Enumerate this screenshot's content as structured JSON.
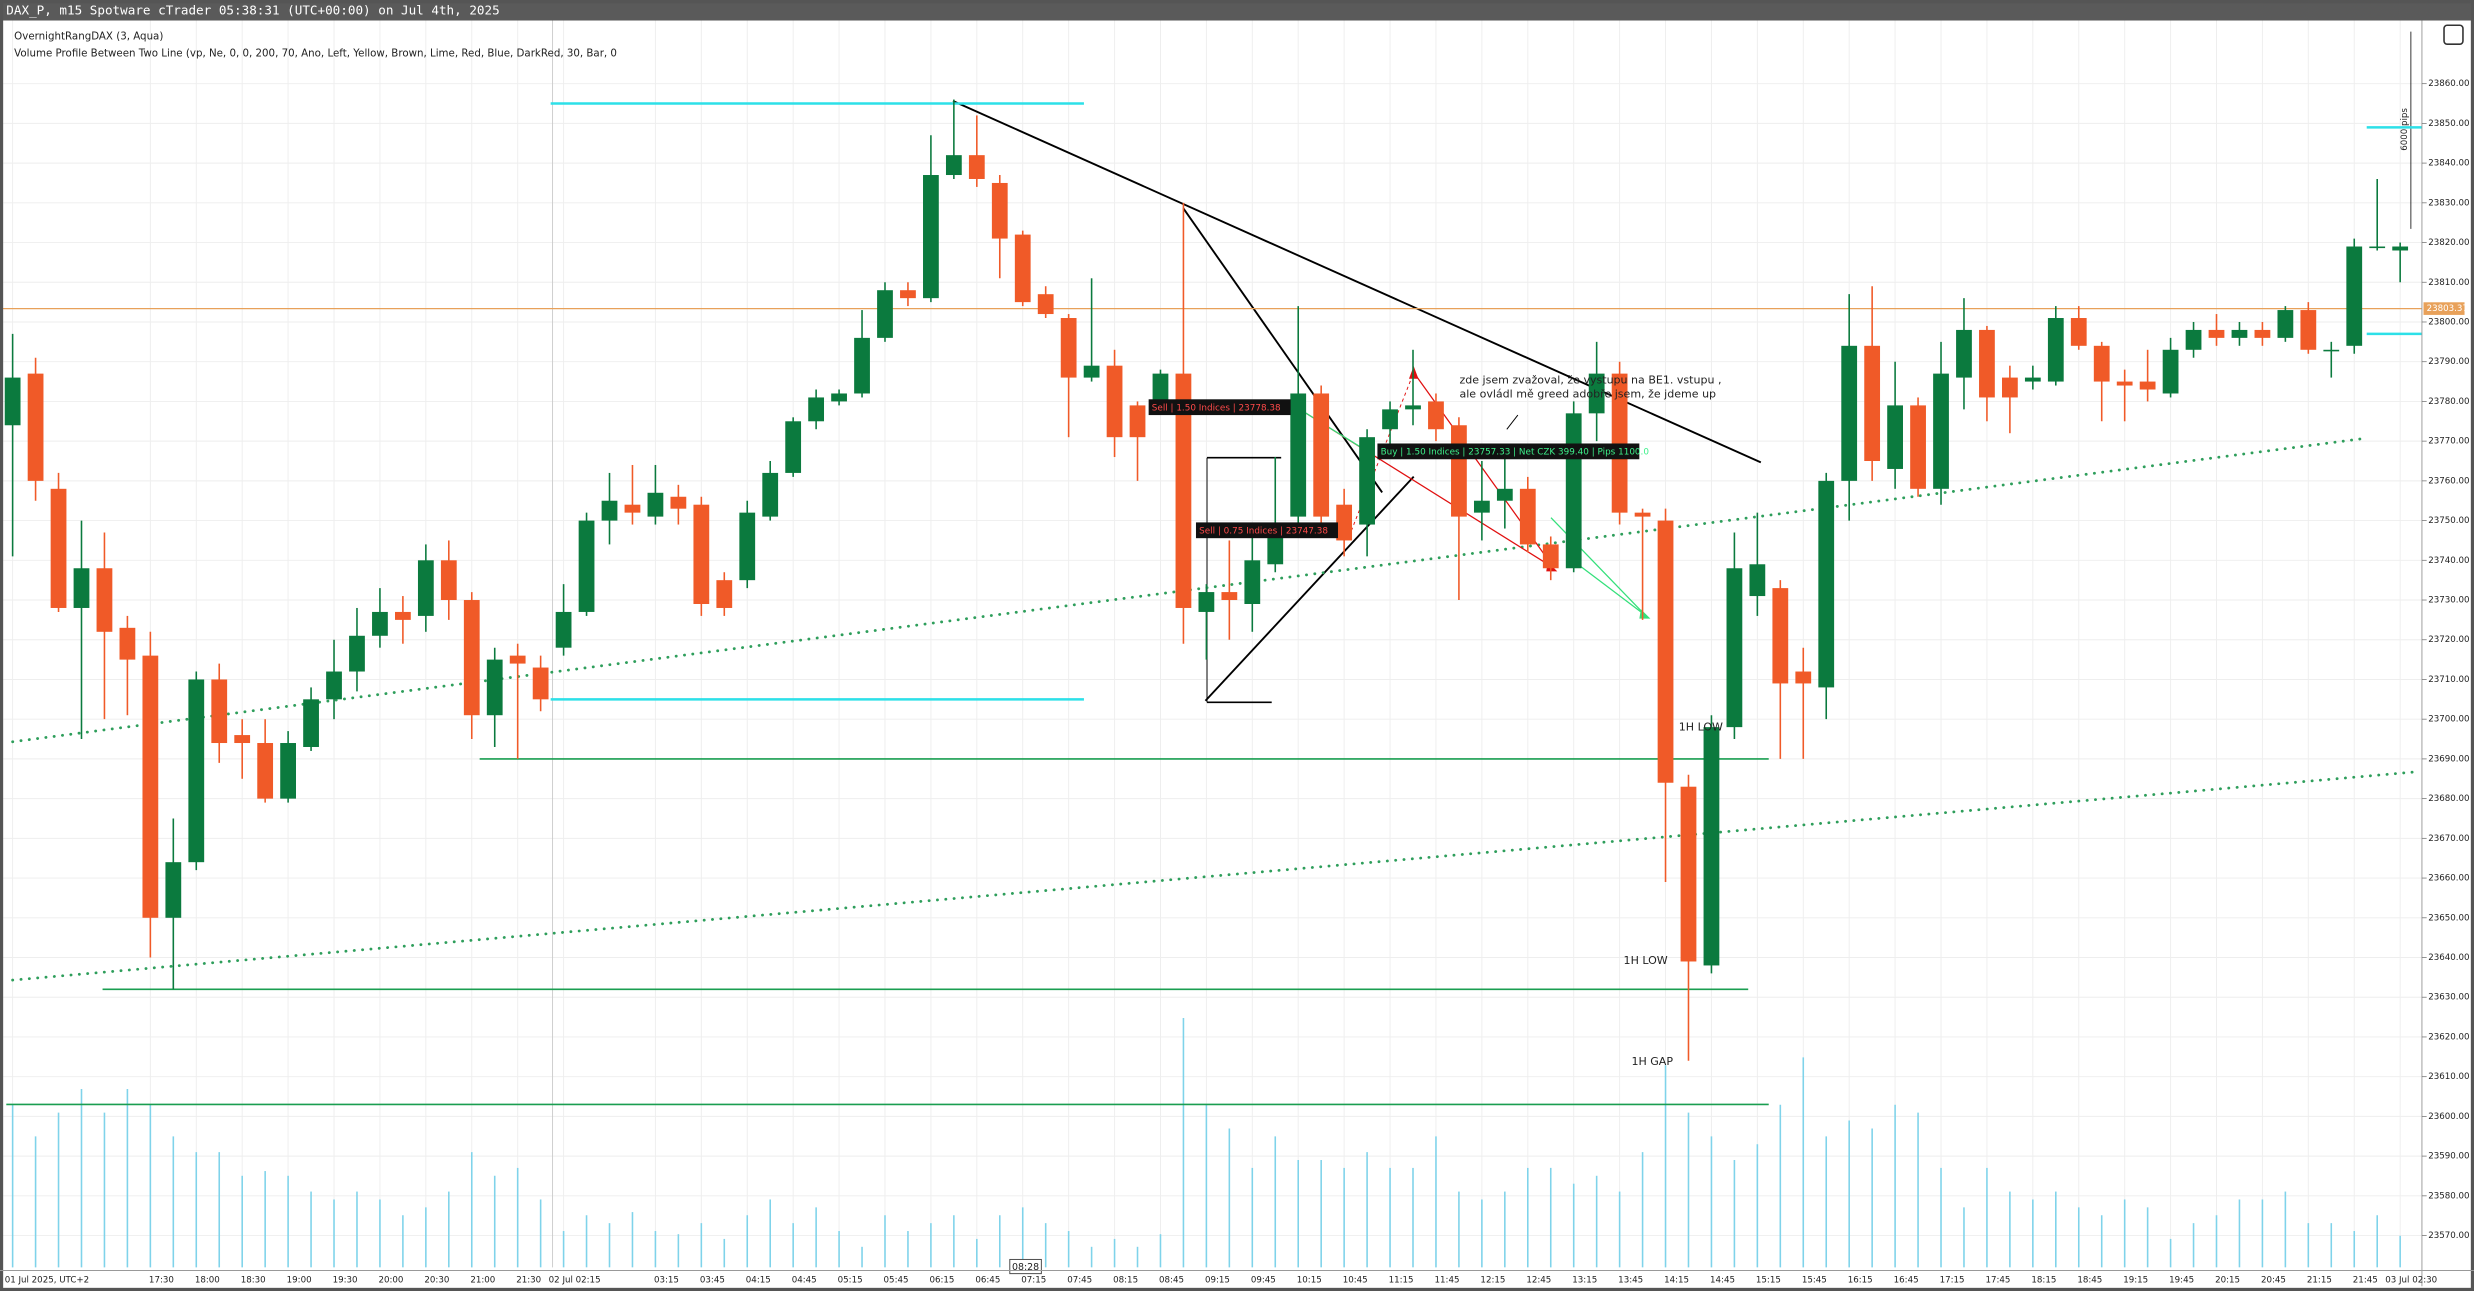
{
  "header": {
    "title": "DAX_P, m15 Spotware cTrader 05:38:31 (UTC+00:00) on Jul 4th, 2025",
    "indicators": [
      "OvernightRangDAX (3, Aqua)",
      "Volume Profile Between Two Line (vp, Ne, 0, 0, 200, 70, Ano, Left, Yellow, Brown, Lime, Red, Blue, DarkRed, 30, Bar, 0"
    ]
  },
  "chart_data": {
    "type": "candlestick",
    "up_color": "#0b7a3e",
    "down_color": "#f05a28",
    "volume_color": "#7fd3ea",
    "grid": true,
    "categories": [
      "01 Jul 2025, UTC+2",
      null,
      null,
      null,
      null,
      null,
      "17:30",
      null,
      "18:00",
      null,
      "18:30",
      null,
      "19:00",
      null,
      "19:30",
      null,
      "20:00",
      null,
      "20:30",
      null,
      "21:00",
      null,
      "21:30",
      null,
      "02 Jul 02:15",
      null,
      null,
      null,
      "03:15",
      null,
      "03:45",
      null,
      "04:15",
      null,
      "04:45",
      null,
      "05:15",
      null,
      "05:45",
      null,
      "06:15",
      null,
      "06:45",
      null,
      "07:15",
      null,
      "07:45",
      null,
      "08:15",
      null,
      "08:45",
      null,
      "09:15",
      null,
      "09:45",
      null,
      "10:15",
      null,
      "10:45",
      null,
      "11:15",
      null,
      "11:45",
      null,
      "12:15",
      null,
      "12:45",
      null,
      "13:15",
      null,
      "13:45",
      null,
      "14:15",
      null,
      "14:45",
      null,
      "15:15",
      null,
      "15:45",
      null,
      "16:15",
      null,
      "16:45",
      null,
      "17:15",
      null,
      "17:45",
      null,
      "18:15",
      null,
      "18:45",
      null,
      "19:15",
      null,
      "19:45",
      null,
      "20:15",
      null,
      "20:45",
      null,
      "21:15",
      null,
      "21:45",
      null,
      "03 Jul 02:30"
    ],
    "open": [
      23774,
      23787,
      23758,
      23728,
      23738,
      23723,
      23716,
      23650,
      23664,
      23710,
      23696,
      23694,
      23680,
      23693,
      23705,
      23712,
      23721,
      23727,
      23726,
      23740,
      23730,
      23701,
      23716,
      23713,
      23718,
      23727,
      23750,
      23754,
      23751,
      23756,
      23754,
      23735,
      23735,
      23751,
      23762,
      23775,
      23780,
      23782,
      23796,
      23808,
      23806,
      23837,
      23842,
      23835,
      23822,
      23807,
      23801,
      23786,
      23789,
      23779,
      23780,
      23787,
      23727,
      23732,
      23729,
      23739,
      23751,
      23782,
      23754,
      23749,
      23773,
      23778,
      23780,
      23774,
      23752,
      23755,
      23758,
      23744,
      23738,
      23777,
      23787,
      23752,
      23750,
      23683,
      23638,
      23698,
      23731,
      23733,
      23712,
      23708,
      23760,
      23794,
      23763,
      23779,
      23758,
      23786,
      23798,
      23786,
      23785,
      23785,
      23801,
      23794,
      23785,
      23785,
      23782,
      23793,
      23798,
      23796,
      23798,
      23796,
      23803,
      23793,
      23794,
      23819,
      23818
    ],
    "high": [
      23797,
      23791,
      23762,
      23750,
      23747,
      23726,
      23722,
      23675,
      23712,
      23714,
      23700,
      23700,
      23697,
      23708,
      23720,
      23728,
      23733,
      23731,
      23744,
      23745,
      23732,
      23718,
      23719,
      23716,
      23734,
      23752,
      23762,
      23764,
      23764,
      23759,
      23756,
      23737,
      23755,
      23765,
      23776,
      23783,
      23783,
      23803,
      23810,
      23810,
      23847,
      23856,
      23852,
      23837,
      23823,
      23809,
      23802,
      23811,
      23793,
      23780,
      23788,
      23830,
      23734,
      23745,
      23747,
      23766,
      23804,
      23784,
      23758,
      23773,
      23780,
      23793,
      23782,
      23776,
      23765,
      23768,
      23761,
      23746,
      23780,
      23795,
      23790,
      23753,
      23753,
      23686,
      23701,
      23747,
      23752,
      23735,
      23718,
      23762,
      23807,
      23809,
      23790,
      23781,
      23795,
      23806,
      23799,
      23789,
      23789,
      23804,
      23804,
      23795,
      23788,
      23793,
      23796,
      23800,
      23802,
      23800,
      23800,
      23804,
      23805,
      23795,
      23821,
      23836,
      23820
    ],
    "low": [
      23741,
      23755,
      23727,
      23695,
      23700,
      23701,
      23640,
      23632,
      23662,
      23689,
      23685,
      23679,
      23679,
      23692,
      23700,
      23707,
      23718,
      23719,
      23722,
      23725,
      23695,
      23693,
      23690,
      23702,
      23716,
      23726,
      23744,
      23749,
      23749,
      23749,
      23726,
      23726,
      23733,
      23750,
      23761,
      23773,
      23779,
      23781,
      23795,
      23804,
      23805,
      23836,
      23834,
      23811,
      23804,
      23801,
      23771,
      23785,
      23766,
      23760,
      23778,
      23719,
      23715,
      23720,
      23722,
      23737,
      23747,
      23748,
      23741,
      23741,
      23766,
      23774,
      23770,
      23730,
      23745,
      23748,
      23742,
      23735,
      23737,
      23770,
      23749,
      23725,
      23659,
      23614,
      23636,
      23695,
      23726,
      23690,
      23690,
      23700,
      23750,
      23760,
      23758,
      23756,
      23754,
      23778,
      23775,
      23772,
      23783,
      23784,
      23793,
      23775,
      23775,
      23780,
      23781,
      23791,
      23794,
      23794,
      23794,
      23795,
      23792,
      23786,
      23792,
      23818,
      23810
    ],
    "close": [
      23786,
      23760,
      23728,
      23738,
      23722,
      23715,
      23650,
      23664,
      23710,
      23694,
      23694,
      23680,
      23694,
      23705,
      23712,
      23721,
      23727,
      23725,
      23740,
      23730,
      23701,
      23715,
      23714,
      23705,
      23727,
      23750,
      23755,
      23752,
      23757,
      23753,
      23729,
      23728,
      23752,
      23762,
      23775,
      23781,
      23782,
      23796,
      23808,
      23806,
      23837,
      23842,
      23836,
      23821,
      23805,
      23802,
      23786,
      23789,
      23771,
      23771,
      23787,
      23728,
      23732,
      23730,
      23740,
      23748,
      23782,
      23751,
      23745,
      23771,
      23778,
      23779,
      23773,
      23751,
      23755,
      23758,
      23744,
      23738,
      23777,
      23787,
      23752,
      23751,
      23684,
      23639,
      23698,
      23738,
      23739,
      23709,
      23709,
      23760,
      23794,
      23765,
      23779,
      23758,
      23787,
      23798,
      23781,
      23781,
      23786,
      23801,
      23794,
      23785,
      23784,
      23783,
      23793,
      23798,
      23796,
      23798,
      23796,
      23803,
      23793,
      23793,
      23819,
      23819,
      23819
    ],
    "volume": [
      103,
      83,
      98,
      113,
      98,
      113,
      103,
      83,
      73,
      73,
      58,
      61,
      58,
      48,
      43,
      48,
      43,
      33,
      38,
      48,
      73,
      58,
      63,
      43,
      23,
      33,
      28,
      35,
      23,
      21,
      28,
      18,
      33,
      43,
      28,
      38,
      23,
      13,
      33,
      23,
      28,
      33,
      18,
      33,
      38,
      28,
      23,
      13,
      18,
      13,
      21,
      158,
      103,
      88,
      63,
      83,
      68,
      68,
      63,
      73,
      63,
      63,
      83,
      48,
      43,
      48,
      63,
      63,
      53,
      58,
      48,
      73,
      128,
      98,
      83,
      68,
      78,
      103,
      133,
      83,
      93,
      88,
      103,
      98,
      63,
      38,
      63,
      48,
      43,
      48,
      38,
      33,
      43,
      38,
      18,
      28,
      33,
      43,
      43,
      48,
      28,
      28,
      23,
      33,
      20
    ],
    "ylim": [
      23562,
      23875.5
    ],
    "yticks": [
      {
        "value": 23570,
        "label": "23570.00"
      },
      {
        "value": 23580,
        "label": "23580.00"
      },
      {
        "value": 23590,
        "label": "23590.00"
      },
      {
        "value": 23600,
        "label": "23600.00"
      },
      {
        "value": 23610,
        "label": "23610.00"
      },
      {
        "value": 23620,
        "label": "23620.00"
      },
      {
        "value": 23630,
        "label": "23630.00"
      },
      {
        "value": 23640,
        "label": "23640.00"
      },
      {
        "value": 23650,
        "label": "23650.00"
      },
      {
        "value": 23660,
        "label": "23660.00"
      },
      {
        "value": 23670,
        "label": "23670.00"
      },
      {
        "value": 23680,
        "label": "23680.00"
      },
      {
        "value": 23690,
        "label": "23690.00"
      },
      {
        "value": 23700,
        "label": "23700.00"
      },
      {
        "value": 23710,
        "label": "23710.00"
      },
      {
        "value": 23720,
        "label": "23720.00"
      },
      {
        "value": 23730,
        "label": "23730.00"
      },
      {
        "value": 23740,
        "label": "23740.00"
      },
      {
        "value": 23750,
        "label": "23750.00"
      },
      {
        "value": 23760,
        "label": "23760.00"
      },
      {
        "value": 23770,
        "label": "23770.00"
      },
      {
        "value": 23780,
        "label": "23780.00"
      },
      {
        "value": 23790,
        "label": "23790.00"
      },
      {
        "value": 23800,
        "label": "23800.00"
      },
      {
        "value": 23810,
        "label": "23810.00"
      },
      {
        "value": 23820,
        "label": "23820.00"
      },
      {
        "value": 23830,
        "label": "23830.00"
      },
      {
        "value": 23840,
        "label": "23840.00"
      },
      {
        "value": 23850,
        "label": "23850.00"
      },
      {
        "value": 23860,
        "label": "23860.00"
      }
    ],
    "last_price": 23803.37,
    "last_price_color": "#e8a15a",
    "levels": [
      {
        "value": 23855,
        "color": "#2de0e8"
      },
      {
        "value": 23705,
        "color": "#2de0e8"
      },
      {
        "value": 23690,
        "color": "#1a9e50"
      },
      {
        "value": 23632,
        "color": "#1a9e50"
      },
      {
        "value": 23603,
        "color": "#1a9e50"
      },
      {
        "value": 23849,
        "color": "#2de0e8"
      },
      {
        "value": 23797,
        "color": "#2de0e8"
      }
    ],
    "annotations": [
      "zde jsem zvažoval, že vystupu na BE1. vstupu ,",
      "ale ovládl mě greed adobře jsem, že jdeme up",
      "1H LOW",
      "1H LOW",
      "1H GAP"
    ],
    "trades": [
      "Sell | 1.50 Indices | 23778.38",
      "Sell | 0.75 Indices | 23747.38",
      "Buy | 1.50 Indices | 23757.33 | Net CZK 399.40 | Pips 1100.0"
    ],
    "measure_label": "6000 pips",
    "cursor_time": "08:28"
  }
}
